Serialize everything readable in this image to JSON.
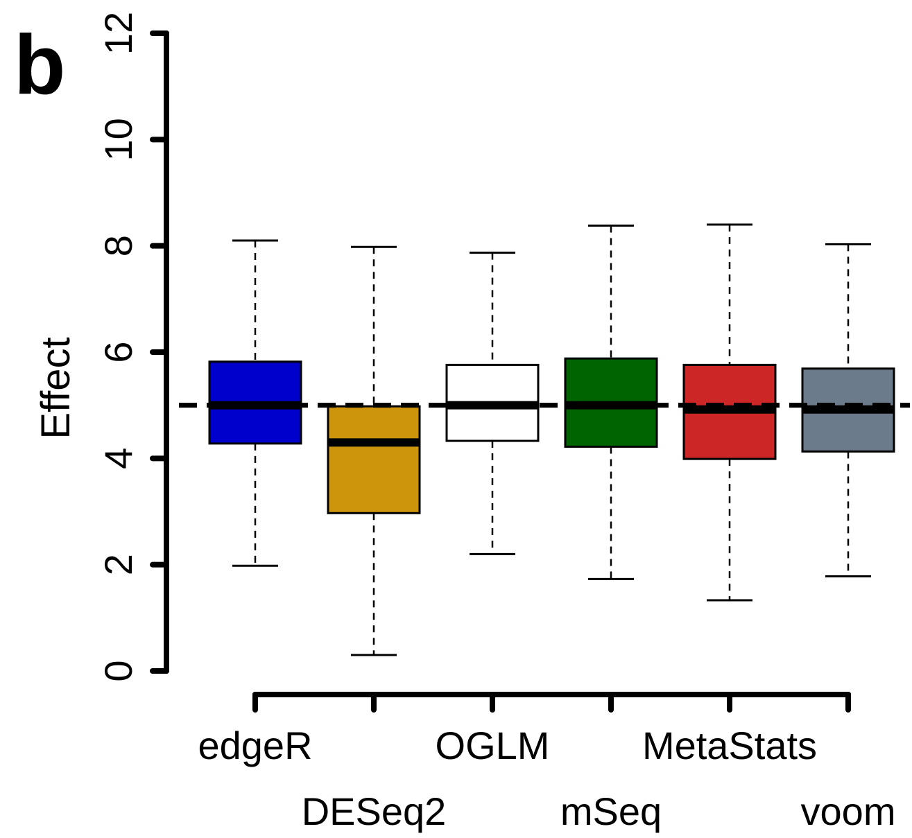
{
  "panel_label": "b",
  "chart_data": {
    "type": "box",
    "ylabel": "Effect",
    "ylim": [
      0,
      12
    ],
    "yticks": [
      "0",
      "2",
      "4",
      "6",
      "8",
      "10",
      "12"
    ],
    "reference_line": 5,
    "categories": [
      "edgeR",
      "DESeq2",
      "OGLM",
      "mSeq",
      "MetaStats",
      "voom"
    ],
    "boxes": [
      {
        "name": "edgeR",
        "min": 1.98,
        "q1": 4.28,
        "median": 5.0,
        "q3": 5.82,
        "max": 8.1,
        "color": "#0000CD"
      },
      {
        "name": "DESeq2",
        "min": 0.3,
        "q1": 2.97,
        "median": 4.3,
        "q3": 4.98,
        "max": 7.98,
        "color": "#CD950C"
      },
      {
        "name": "OGLM",
        "min": 2.2,
        "q1": 4.33,
        "median": 5.0,
        "q3": 5.76,
        "max": 7.87,
        "color": "#FFFFFF"
      },
      {
        "name": "mSeq",
        "min": 1.73,
        "q1": 4.22,
        "median": 5.0,
        "q3": 5.88,
        "max": 8.38,
        "color": "#006400"
      },
      {
        "name": "MetaStats",
        "min": 1.33,
        "q1": 3.99,
        "median": 4.92,
        "q3": 5.76,
        "max": 8.4,
        "color": "#CD2626"
      },
      {
        "name": "voom",
        "min": 1.78,
        "q1": 4.13,
        "median": 4.92,
        "q3": 5.69,
        "max": 8.03,
        "color": "#6C7B8B"
      }
    ],
    "grid": false,
    "legend": "none"
  }
}
